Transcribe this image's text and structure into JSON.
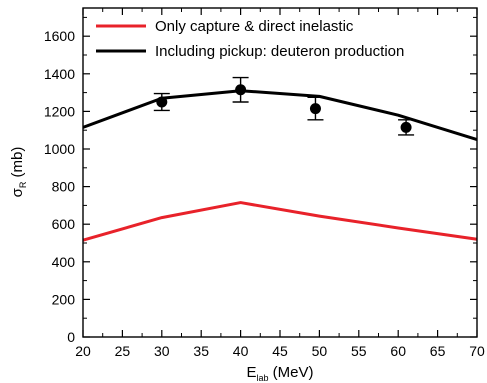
{
  "chart_data": {
    "type": "line",
    "xlabel": {
      "main": "E",
      "sub": "lab",
      "unit": " (MeV)"
    },
    "ylabel": {
      "main": "σ",
      "sub": "R",
      "unit": " (mb)"
    },
    "xlim": [
      20,
      70
    ],
    "ylim": [
      0,
      1750
    ],
    "xticks": [
      20,
      25,
      30,
      35,
      40,
      45,
      50,
      55,
      60,
      65,
      70
    ],
    "yticks": [
      0,
      200,
      400,
      600,
      800,
      1000,
      1200,
      1400,
      1600
    ],
    "legend_position": "top-left",
    "grid": false,
    "series": [
      {
        "name": "Only capture & direct inelastic",
        "color": "#e8222a",
        "x": [
          20,
          30,
          40,
          50,
          60,
          70
        ],
        "y": [
          515,
          635,
          715,
          643,
          580,
          520
        ]
      },
      {
        "name": "Including pickup: deuteron production",
        "color": "#000000",
        "x": [
          20,
          30,
          40,
          50,
          60,
          70
        ],
        "y": [
          1115,
          1270,
          1310,
          1280,
          1180,
          1050
        ]
      }
    ],
    "points": {
      "color": "#000000",
      "x": [
        30,
        40,
        49.5,
        61
      ],
      "y": [
        1250,
        1315,
        1215,
        1115
      ],
      "err": [
        45,
        65,
        60,
        40
      ]
    }
  }
}
